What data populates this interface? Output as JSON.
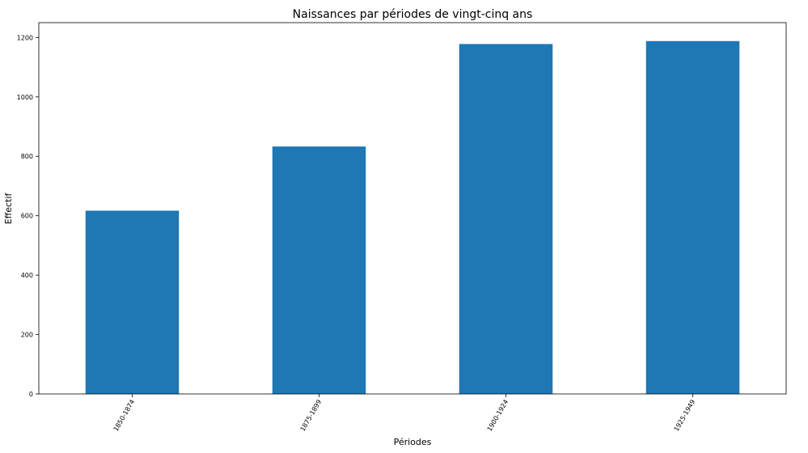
{
  "chart_data": {
    "type": "bar",
    "title": "Naissances par périodes de vingt-cinq ans",
    "xlabel": "Périodes",
    "ylabel": "Effectif",
    "categories": [
      "1850-1874",
      "1875-1899",
      "1900-1924",
      "1925-1949"
    ],
    "values": [
      617,
      833,
      1178,
      1188
    ],
    "ylim": [
      0,
      1250
    ],
    "yticks": [
      0,
      200,
      400,
      600,
      800,
      1000,
      1200
    ],
    "bar_color": "#1f77b4",
    "grid": false,
    "legend": false
  }
}
